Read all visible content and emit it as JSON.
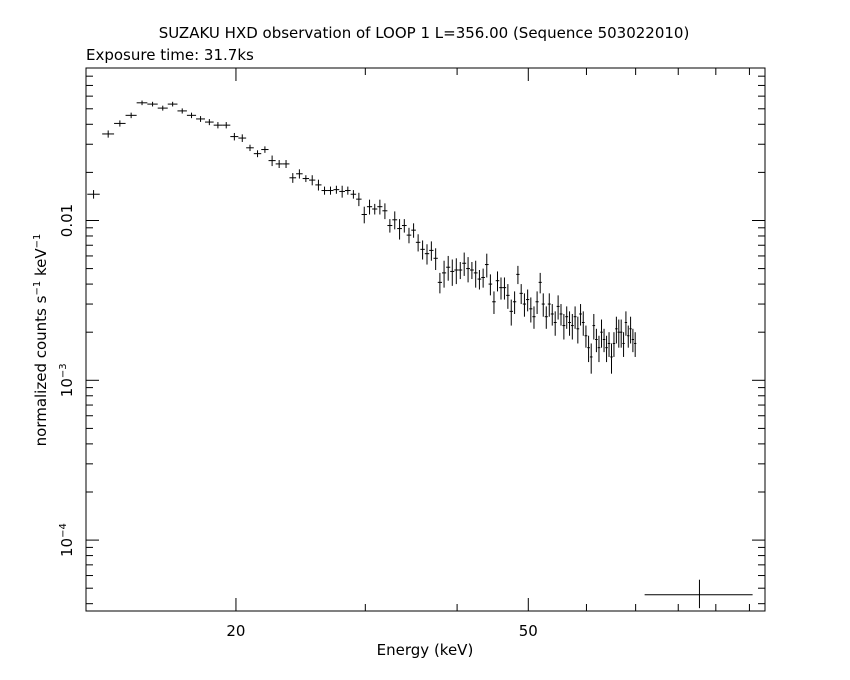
{
  "title": "SUZAKU HXD observation of LOOP 1 L=356.00 (Sequence 503022010)",
  "subtitle": "Exposure time: 31.7ks",
  "chart_data": {
    "type": "scatter",
    "xlabel": "Energy (keV)",
    "ylabel": "normalized counts s-1 keV-1",
    "ylabel_parts": {
      "pre": "normalized counts s",
      "exp1": "−1",
      "mid": " keV",
      "exp2": "−1"
    },
    "x_scale": "log",
    "y_scale": "log",
    "xlim": [
      12.5,
      105
    ],
    "ylim": [
      3.6e-05,
      0.09
    ],
    "x_ticks": [
      {
        "value": 20,
        "label": "20"
      },
      {
        "value": 50,
        "label": "50"
      }
    ],
    "y_ticks": [
      {
        "value": 0.01,
        "base": "0.01",
        "exp": ""
      },
      {
        "value": 0.001,
        "base": "10",
        "exp": "−3"
      },
      {
        "value": 0.0001,
        "base": "10",
        "exp": "−4"
      }
    ],
    "grid": false,
    "series": [
      {
        "points": [
          [
            12.8,
            0.0146,
            0.0009
          ],
          [
            13.4,
            0.0348,
            0.0018
          ],
          [
            13.9,
            0.0405,
            0.0018
          ],
          [
            14.4,
            0.0455,
            0.0018
          ],
          [
            14.9,
            0.0545,
            0.0018
          ],
          [
            15.4,
            0.0535,
            0.0018
          ],
          [
            15.9,
            0.0505,
            0.0018
          ],
          [
            16.4,
            0.0535,
            0.0018
          ],
          [
            16.9,
            0.0485,
            0.0018
          ],
          [
            17.4,
            0.0455,
            0.0018
          ],
          [
            17.9,
            0.0432,
            0.0018
          ],
          [
            18.4,
            0.0413,
            0.0018
          ],
          [
            18.9,
            0.0395,
            0.0018
          ],
          [
            19.4,
            0.0395,
            0.0018
          ],
          [
            19.9,
            0.0335,
            0.0018
          ],
          [
            20.4,
            0.0328,
            0.0018
          ],
          [
            20.9,
            0.0285,
            0.0013
          ],
          [
            21.4,
            0.0262,
            0.0013
          ],
          [
            21.9,
            0.0278,
            0.0013
          ],
          [
            22.4,
            0.0237,
            0.0018
          ],
          [
            22.9,
            0.0226,
            0.0013
          ],
          [
            23.4,
            0.0226,
            0.0013
          ],
          [
            23.9,
            0.0185,
            0.0013
          ],
          [
            24.4,
            0.0196,
            0.0013
          ],
          [
            24.9,
            0.0183,
            0.0009
          ],
          [
            25.4,
            0.0179,
            0.0013
          ],
          [
            25.9,
            0.0167,
            0.0013
          ],
          [
            26.4,
            0.0154,
            0.0009
          ],
          [
            26.9,
            0.0154,
            0.0009
          ],
          [
            27.4,
            0.0156,
            0.0009
          ],
          [
            27.9,
            0.0152,
            0.0013
          ],
          [
            28.4,
            0.0154,
            0.0009
          ],
          [
            28.9,
            0.0146,
            0.0009
          ],
          [
            29.4,
            0.0136,
            0.0013
          ],
          [
            29.9,
            0.0109,
            0.0013
          ],
          [
            30.4,
            0.0122,
            0.0013
          ],
          [
            30.9,
            0.0118,
            0.0009
          ],
          [
            31.4,
            0.0122,
            0.0013
          ],
          [
            31.9,
            0.0115,
            0.0013
          ],
          [
            32.4,
            0.0093,
            0.0009
          ],
          [
            32.9,
            0.0101,
            0.0013
          ],
          [
            33.4,
            0.0089,
            0.0013
          ],
          [
            33.9,
            0.0093,
            0.0009
          ],
          [
            34.4,
            0.0081,
            0.0009
          ],
          [
            34.9,
            0.0087,
            0.0009
          ],
          [
            35.4,
            0.0073,
            0.0009
          ],
          [
            35.9,
            0.0066,
            0.0009
          ],
          [
            36.4,
            0.0062,
            0.0009
          ],
          [
            36.9,
            0.0065,
            0.0009
          ],
          [
            37.4,
            0.0058,
            0.0009
          ],
          [
            37.9,
            0.0041,
            0.0006
          ],
          [
            38.4,
            0.0047,
            0.0009
          ],
          [
            38.9,
            0.0051,
            0.0009
          ],
          [
            39.4,
            0.0048,
            0.0009
          ],
          [
            39.9,
            0.0049,
            0.0009
          ],
          [
            40.4,
            0.0049,
            0.0006
          ],
          [
            40.9,
            0.0054,
            0.0009
          ],
          [
            41.4,
            0.005,
            0.0009
          ],
          [
            41.9,
            0.0049,
            0.0006
          ],
          [
            42.4,
            0.0047,
            0.0009
          ],
          [
            42.9,
            0.0043,
            0.0006
          ],
          [
            43.4,
            0.0044,
            0.0006
          ],
          [
            43.9,
            0.0053,
            0.0009
          ],
          [
            44.4,
            0.004,
            0.0006
          ],
          [
            44.9,
            0.0031,
            0.0005
          ],
          [
            45.4,
            0.0042,
            0.0006
          ],
          [
            45.9,
            0.0038,
            0.0006
          ],
          [
            46.4,
            0.0038,
            0.0006
          ],
          [
            46.9,
            0.0034,
            0.0006
          ],
          [
            47.4,
            0.0027,
            0.0005
          ],
          [
            47.9,
            0.0031,
            0.0005
          ],
          [
            48.4,
            0.0046,
            0.0006
          ],
          [
            48.9,
            0.0035,
            0.0005
          ],
          [
            49.4,
            0.003,
            0.0005
          ],
          [
            49.9,
            0.0032,
            0.0005
          ],
          [
            50.4,
            0.0028,
            0.0005
          ],
          [
            50.9,
            0.0025,
            0.0004
          ],
          [
            51.4,
            0.0031,
            0.0005
          ],
          [
            51.9,
            0.0041,
            0.0006
          ],
          [
            52.4,
            0.003,
            0.0005
          ],
          [
            52.9,
            0.0025,
            0.0004
          ],
          [
            53.4,
            0.003,
            0.0005
          ],
          [
            53.9,
            0.0026,
            0.0004
          ],
          [
            54.4,
            0.0023,
            0.0004
          ],
          [
            54.9,
            0.0029,
            0.0005
          ],
          [
            55.4,
            0.0026,
            0.0004
          ],
          [
            55.9,
            0.0022,
            0.0004
          ],
          [
            56.4,
            0.0025,
            0.0004
          ],
          [
            56.9,
            0.0023,
            0.0004
          ],
          [
            57.4,
            0.0022,
            0.0004
          ],
          [
            57.9,
            0.0025,
            0.0004
          ],
          [
            58.4,
            0.0021,
            0.0004
          ],
          [
            58.9,
            0.0026,
            0.0004
          ],
          [
            59.4,
            0.0023,
            0.0004
          ],
          [
            59.9,
            0.0019,
            0.0003
          ],
          [
            60.4,
            0.0016,
            0.0003
          ],
          [
            60.9,
            0.0014,
            0.0003
          ],
          [
            61.4,
            0.0022,
            0.0004
          ],
          [
            61.9,
            0.0018,
            0.0003
          ],
          [
            62.4,
            0.0016,
            0.0003
          ],
          [
            62.9,
            0.002,
            0.0004
          ],
          [
            63.4,
            0.0018,
            0.0003
          ],
          [
            63.9,
            0.0016,
            0.0003
          ],
          [
            64.4,
            0.0017,
            0.0003
          ],
          [
            64.9,
            0.0014,
            0.0003
          ],
          [
            65.4,
            0.0017,
            0.0003
          ],
          [
            65.9,
            0.0021,
            0.0004
          ],
          [
            66.4,
            0.002,
            0.0004
          ],
          [
            66.9,
            0.002,
            0.0004
          ],
          [
            67.4,
            0.0017,
            0.0003
          ],
          [
            67.9,
            0.0023,
            0.0004
          ],
          [
            68.4,
            0.0019,
            0.0003
          ],
          [
            68.9,
            0.0021,
            0.0004
          ],
          [
            69.4,
            0.0018,
            0.0003
          ],
          [
            69.9,
            0.0017,
            0.0003
          ]
        ],
        "x_half_width": 0.25
      }
    ],
    "annotation_crosses": [
      {
        "x": 85.5,
        "y": 4.55e-05,
        "xerr": [
          72,
          101
        ],
        "yerr": [
          3.75e-05,
          5.65e-05
        ]
      }
    ]
  }
}
